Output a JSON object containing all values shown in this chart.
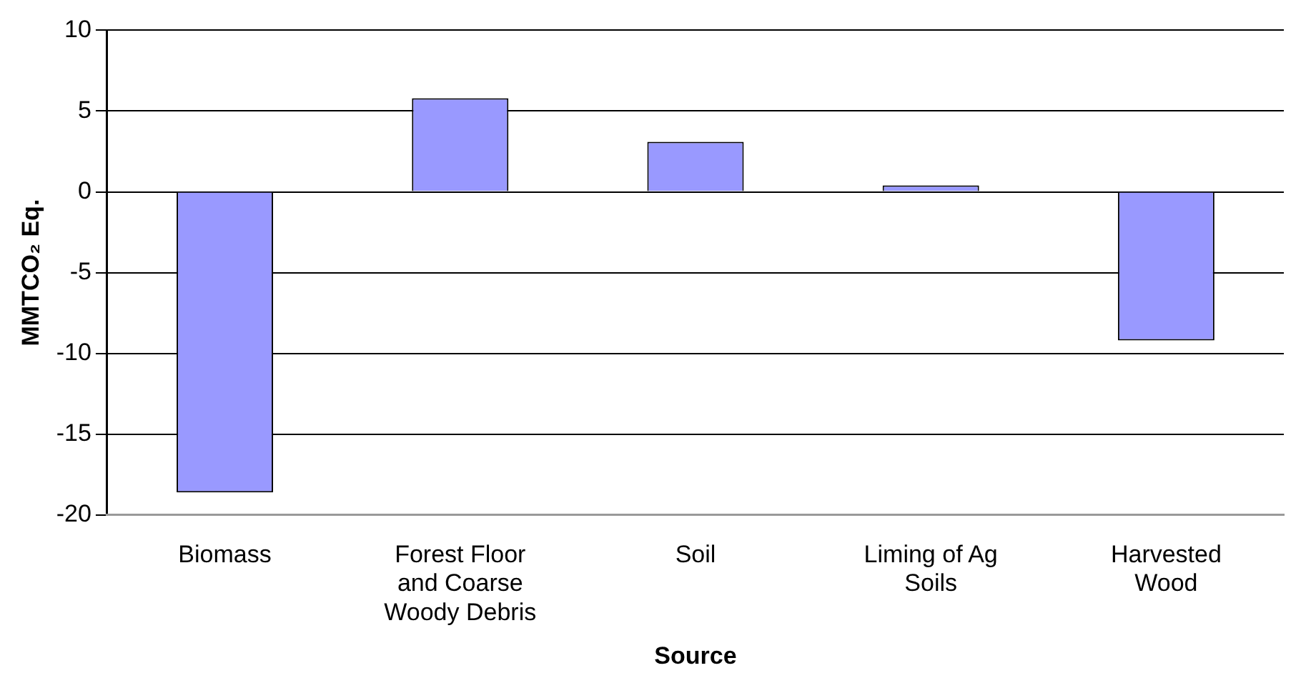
{
  "chart_data": {
    "type": "bar",
    "xlabel": "Source",
    "ylabel": "MMTCO₂ Eq.",
    "categories": [
      "Biomass",
      "Forest Floor and Coarse Woody Debris",
      "Soil",
      "Liming of Ag Soils",
      "Harvested Wood"
    ],
    "values": [
      -18.6,
      5.8,
      3.1,
      0.4,
      -9.2
    ],
    "color": "#9999ff",
    "ylim": [
      -20,
      10
    ],
    "yticks": [
      -20,
      -15,
      -10,
      -5,
      0,
      5,
      10
    ],
    "grid": "y",
    "legend": false
  }
}
